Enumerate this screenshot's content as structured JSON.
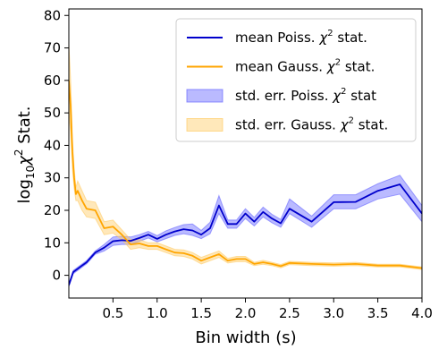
{
  "chart_data": {
    "type": "line",
    "title": "",
    "xlabel": "Bin width (s)",
    "ylabel_base": "log",
    "ylabel_sub": "10",
    "ylabel_chi": "χ",
    "ylabel_sup": "2",
    "ylabel_rest": " Stat.",
    "xlim": [
      0.0,
      4.0
    ],
    "ylim": [
      -7,
      82
    ],
    "xticks": [
      0.5,
      1.0,
      1.5,
      2.0,
      2.5,
      3.0,
      3.5,
      4.0
    ],
    "xtick_labels": [
      "0.5",
      "1.0",
      "1.5",
      "2.0",
      "2.5",
      "3.0",
      "3.5",
      "4.0"
    ],
    "yticks": [
      0,
      10,
      20,
      30,
      40,
      50,
      60,
      70,
      80
    ],
    "ytick_labels": [
      "0",
      "10",
      "20",
      "30",
      "40",
      "50",
      "60",
      "70",
      "80"
    ],
    "legend_position": "top-right",
    "legend": [
      {
        "label_pre": "mean Poiss. ",
        "label_chi": "χ",
        "label_sup": "2",
        "label_post": " stat.",
        "kind": "line",
        "color": "#0000cc"
      },
      {
        "label_pre": "mean Gauss. ",
        "label_chi": "χ",
        "label_sup": "2",
        "label_post": " stat.",
        "kind": "line",
        "color": "#ffa500"
      },
      {
        "label_pre": "std. err. Poiss. ",
        "label_chi": "χ",
        "label_sup": "2",
        "label_post": " stat",
        "kind": "band",
        "color": "#6666ff"
      },
      {
        "label_pre": "std. err. Gauss. ",
        "label_chi": "χ",
        "label_sup": "2",
        "label_post": " stat.",
        "kind": "band",
        "color": "#ffcc66"
      }
    ],
    "series": [
      {
        "kind": "line",
        "color": "#0000cc",
        "x": [
          0.0,
          0.05,
          0.1,
          0.15,
          0.2,
          0.3,
          0.4,
          0.5,
          0.6,
          0.7,
          0.8,
          0.9,
          1.0,
          1.1,
          1.2,
          1.3,
          1.4,
          1.5,
          1.6,
          1.7,
          1.8,
          1.9,
          2.0,
          2.1,
          2.2,
          2.3,
          2.4,
          2.5,
          2.75,
          3.0,
          3.25,
          3.5,
          3.75,
          4.0
        ],
        "y": [
          -3,
          1,
          2,
          3,
          4,
          7,
          8.5,
          10.5,
          10.8,
          10.6,
          11.5,
          12.5,
          11.2,
          12.5,
          13.5,
          14.2,
          13.8,
          12.5,
          14.5,
          21.5,
          15.8,
          15.8,
          19,
          16.5,
          19.5,
          17.5,
          16,
          20.5,
          16.5,
          22.5,
          22.6,
          26,
          28,
          19
        ]
      },
      {
        "kind": "line",
        "color": "#ffa500",
        "x": [
          0.0,
          0.02,
          0.04,
          0.06,
          0.08,
          0.1,
          0.15,
          0.2,
          0.3,
          0.4,
          0.5,
          0.6,
          0.7,
          0.8,
          0.9,
          1.0,
          1.1,
          1.2,
          1.3,
          1.4,
          1.5,
          1.6,
          1.7,
          1.8,
          1.9,
          2.0,
          2.1,
          2.2,
          2.3,
          2.4,
          2.5,
          2.75,
          3.0,
          3.25,
          3.5,
          3.75,
          4.0
        ],
        "y": [
          60,
          52,
          38,
          30,
          25,
          26,
          23,
          20.5,
          20,
          14.5,
          15,
          12.5,
          9.5,
          9.8,
          9,
          9,
          8,
          7,
          6.8,
          6,
          4.5,
          5.5,
          6.5,
          4.5,
          5,
          5,
          3.5,
          4,
          3.5,
          2.8,
          3.8,
          3.5,
          3.3,
          3.5,
          3.0,
          3.0,
          2.2
        ]
      },
      {
        "kind": "band",
        "color": "#6666ff",
        "x": [
          0.0,
          0.05,
          0.1,
          0.15,
          0.2,
          0.3,
          0.4,
          0.5,
          0.6,
          0.7,
          0.8,
          0.9,
          1.0,
          1.1,
          1.2,
          1.3,
          1.4,
          1.5,
          1.6,
          1.7,
          1.8,
          1.9,
          2.0,
          2.1,
          2.2,
          2.3,
          2.4,
          2.5,
          2.75,
          3.0,
          3.25,
          3.5,
          3.75,
          4.0
        ],
        "y_low": [
          -3.5,
          0.5,
          1.5,
          2.5,
          3.5,
          6.5,
          7.5,
          9.2,
          9.5,
          9.5,
          10.5,
          11.5,
          10.3,
          11.3,
          12.3,
          12.8,
          12.3,
          11.3,
          12.8,
          19,
          14.5,
          14.5,
          17.5,
          15.2,
          18,
          16.2,
          14.8,
          19,
          14.8,
          20.5,
          20.5,
          23.5,
          25,
          16.5
        ],
        "y_high": [
          -2.5,
          1.5,
          2.5,
          3.5,
          4.5,
          7.5,
          9.5,
          11.8,
          12,
          11.8,
          12.5,
          13.5,
          12.2,
          13.7,
          14.7,
          15.6,
          15.8,
          13.8,
          16.3,
          24.5,
          17,
          17,
          20.5,
          17.8,
          21,
          18.8,
          17.2,
          23.5,
          18.2,
          24.8,
          24.8,
          28.2,
          30.8,
          21.5
        ]
      },
      {
        "kind": "band",
        "color": "#ffcc66",
        "x": [
          0.0,
          0.02,
          0.04,
          0.06,
          0.08,
          0.1,
          0.15,
          0.2,
          0.3,
          0.4,
          0.5,
          0.6,
          0.7,
          0.8,
          0.9,
          1.0,
          1.1,
          1.2,
          1.3,
          1.4,
          1.5,
          1.6,
          1.7,
          1.8,
          1.9,
          2.0,
          2.1,
          2.2,
          2.3,
          2.4,
          2.5,
          2.75,
          3.0,
          3.25,
          3.5,
          3.75,
          4.0
        ],
        "y_low": [
          50,
          44,
          33,
          27,
          23,
          23,
          20,
          18,
          17.5,
          12.5,
          13,
          11,
          8,
          8.5,
          8,
          8,
          7,
          6,
          5.8,
          5,
          3.5,
          4.5,
          5.5,
          3.8,
          4.2,
          4.2,
          3,
          3.4,
          3,
          2.3,
          3.3,
          3,
          2.8,
          3,
          2.6,
          2.6,
          1.8
        ],
        "y_high": [
          71,
          60,
          42,
          33,
          27,
          29,
          26,
          23,
          22.5,
          16.5,
          17,
          14,
          11,
          11,
          10,
          10,
          9,
          8,
          7.8,
          7,
          5.5,
          6.5,
          7.5,
          5.2,
          5.8,
          5.8,
          4,
          4.6,
          4,
          3.3,
          4.3,
          4,
          3.8,
          4,
          3.4,
          3.4,
          2.6
        ]
      }
    ]
  }
}
